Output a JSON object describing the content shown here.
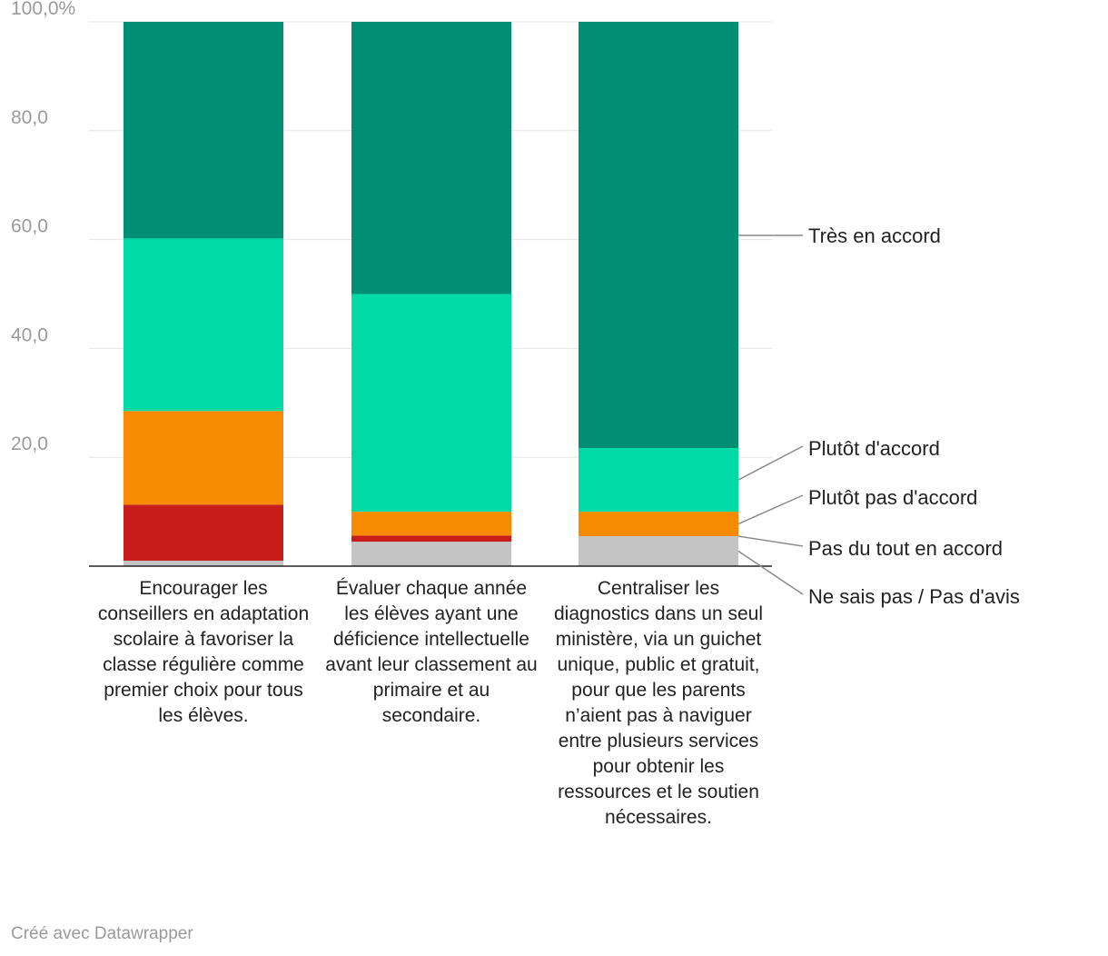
{
  "chart_data": {
    "type": "bar",
    "stacked": true,
    "categories": [
      "Encourager les conseillers en adaptation scolaire à favoriser la classe régulière comme premier choix pour tous les élèves.",
      "Évaluer chaque année les élèves ayant une déficience intellectuelle avant leur classement au primaire et au secondaire.",
      "Centraliser les diagnostics dans un seul ministère, via un guichet unique, public et gratuit, pour que les parents n’aient pas à naviguer entre plusieurs services pour obtenir les ressources et le soutien nécessaires."
    ],
    "series": [
      {
        "name": "Ne sais pas / Pas d'avis",
        "color": "#c4c4c4",
        "values": [
          1.0,
          4.5,
          5.5
        ]
      },
      {
        "name": "Pas du tout en accord",
        "color": "#c71e1d",
        "values": [
          10.3,
          1.1,
          0.0
        ]
      },
      {
        "name": "Plutôt pas d'accord",
        "color": "#f68a00",
        "values": [
          17.2,
          4.4,
          4.5
        ]
      },
      {
        "name": "Plutôt d'accord",
        "color": "#00dba5",
        "values": [
          31.7,
          40.0,
          11.7
        ]
      },
      {
        "name": "Très en accord",
        "color": "#008e74",
        "values": [
          39.8,
          50.0,
          78.3
        ]
      }
    ],
    "ylim": [
      0,
      100
    ],
    "yticks": [
      {
        "value": 20,
        "label": "20,0"
      },
      {
        "value": 40,
        "label": "40,0"
      },
      {
        "value": 60,
        "label": "60,0"
      },
      {
        "value": 80,
        "label": "80,0"
      },
      {
        "value": 100,
        "label": "100,0%"
      }
    ],
    "legend_placement": "right"
  },
  "credit": "Créé avec Datawrapper"
}
